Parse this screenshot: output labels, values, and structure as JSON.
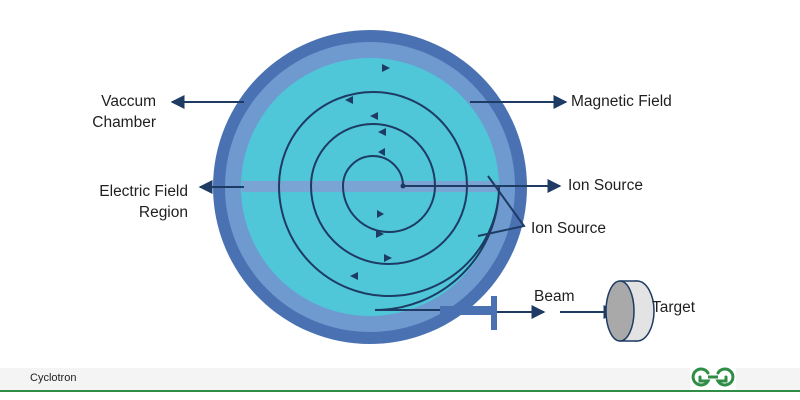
{
  "labels": {
    "vacuum_chamber_line1": "Vaccum",
    "vacuum_chamber_line2": "Chamber",
    "magnetic_field": "Magnetic Field",
    "electric_field_line1": "Electric Field",
    "electric_field_line2": "Region",
    "ion_source_top": "Ion Source",
    "ion_source_bottom": "Ion Source",
    "beam": "Beam",
    "target": "Target"
  },
  "footer": {
    "caption": "Cyclotron"
  },
  "colors": {
    "outer_ring": "#4a72b3",
    "middle_ring": "#6e9ad0",
    "chamber_fill": "#50c6d9",
    "field_band": "#7aa4d3",
    "path_stroke": "#1d3b63",
    "target_face": "#a9a9a9",
    "target_rim": "#e3e3e3",
    "brand_green": "#2f8d46"
  },
  "icons": [
    "arrow-icon",
    "target-disc-icon",
    "gfg-logo-icon"
  ]
}
